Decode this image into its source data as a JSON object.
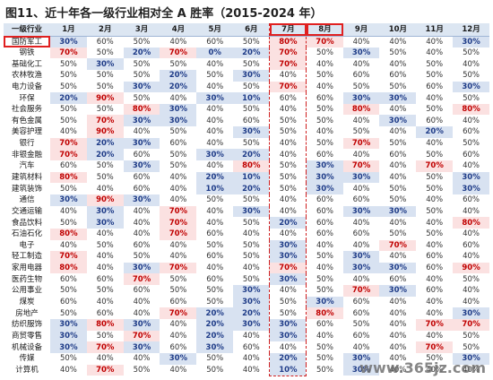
{
  "title": "图11、近十年各一级行业相对全 A 胜率（2015-2024 年）",
  "table": {
    "header": [
      "一级行业",
      "1月",
      "2月",
      "3月",
      "4月",
      "5月",
      "6月",
      "7月",
      "8月",
      "9月",
      "10月",
      "11月",
      "12月"
    ],
    "rows": [
      [
        "国防军工",
        "30%",
        "60%",
        "50%",
        "40%",
        "60%",
        "50%",
        "80%",
        "70%",
        "40%",
        "40%",
        "40%",
        "30%"
      ],
      [
        "钢铁",
        "70%",
        "50%",
        "20%",
        "70%",
        "0%",
        "20%",
        "70%",
        "50%",
        "30%",
        "50%",
        "40%",
        "50%"
      ],
      [
        "基础化工",
        "50%",
        "30%",
        "50%",
        "50%",
        "40%",
        "50%",
        "70%",
        "40%",
        "40%",
        "40%",
        "50%",
        "40%"
      ],
      [
        "农林牧渔",
        "50%",
        "50%",
        "50%",
        "20%",
        "50%",
        "30%",
        "40%",
        "50%",
        "60%",
        "60%",
        "50%",
        "50%"
      ],
      [
        "电力设备",
        "50%",
        "50%",
        "30%",
        "20%",
        "40%",
        "50%",
        "70%",
        "40%",
        "50%",
        "50%",
        "60%",
        "30%"
      ],
      [
        "环保",
        "20%",
        "90%",
        "50%",
        "40%",
        "30%",
        "10%",
        "60%",
        "60%",
        "30%",
        "30%",
        "40%",
        "50%"
      ],
      [
        "社会服务",
        "50%",
        "50%",
        "80%",
        "30%",
        "40%",
        "50%",
        "40%",
        "50%",
        "80%",
        "40%",
        "50%",
        "80%"
      ],
      [
        "有色金属",
        "50%",
        "70%",
        "30%",
        "30%",
        "40%",
        "60%",
        "50%",
        "50%",
        "40%",
        "30%",
        "60%",
        "40%"
      ],
      [
        "美容护理",
        "40%",
        "90%",
        "40%",
        "50%",
        "40%",
        "30%",
        "50%",
        "40%",
        "50%",
        "40%",
        "20%",
        "60%"
      ],
      [
        "银行",
        "70%",
        "20%",
        "30%",
        "60%",
        "40%",
        "50%",
        "40%",
        "50%",
        "70%",
        "50%",
        "40%",
        "50%"
      ],
      [
        "非银金融",
        "70%",
        "20%",
        "60%",
        "50%",
        "30%",
        "20%",
        "40%",
        "60%",
        "40%",
        "60%",
        "50%",
        "60%"
      ],
      [
        "汽车",
        "60%",
        "50%",
        "30%",
        "50%",
        "40%",
        "80%",
        "50%",
        "30%",
        "70%",
        "40%",
        "70%",
        "40%"
      ],
      [
        "建筑材料",
        "80%",
        "50%",
        "60%",
        "40%",
        "20%",
        "10%",
        "50%",
        "30%",
        "30%",
        "40%",
        "50%",
        "30%"
      ],
      [
        "建筑装饰",
        "50%",
        "40%",
        "60%",
        "40%",
        "10%",
        "20%",
        "50%",
        "30%",
        "40%",
        "50%",
        "50%",
        "30%"
      ],
      [
        "通信",
        "30%",
        "90%",
        "30%",
        "40%",
        "50%",
        "50%",
        "40%",
        "60%",
        "60%",
        "50%",
        "40%",
        "60%"
      ],
      [
        "交通运输",
        "40%",
        "30%",
        "40%",
        "70%",
        "40%",
        "30%",
        "40%",
        "60%",
        "30%",
        "30%",
        "50%",
        "40%"
      ],
      [
        "食品饮料",
        "50%",
        "30%",
        "40%",
        "70%",
        "40%",
        "50%",
        "20%",
        "60%",
        "40%",
        "40%",
        "40%",
        "80%"
      ],
      [
        "石油石化",
        "80%",
        "40%",
        "40%",
        "70%",
        "60%",
        "40%",
        "40%",
        "60%",
        "60%",
        "50%",
        "50%",
        "40%"
      ],
      [
        "电子",
        "40%",
        "50%",
        "60%",
        "40%",
        "50%",
        "50%",
        "30%",
        "40%",
        "40%",
        "70%",
        "40%",
        "60%"
      ],
      [
        "轻工制造",
        "70%",
        "40%",
        "50%",
        "40%",
        "60%",
        "50%",
        "30%",
        "50%",
        "30%",
        "40%",
        "60%",
        "40%"
      ],
      [
        "家用电器",
        "80%",
        "40%",
        "30%",
        "70%",
        "40%",
        "40%",
        "70%",
        "40%",
        "30%",
        "30%",
        "60%",
        "90%"
      ],
      [
        "医药生物",
        "60%",
        "60%",
        "70%",
        "50%",
        "60%",
        "50%",
        "30%",
        "50%",
        "40%",
        "60%",
        "40%",
        "50%"
      ],
      [
        "公用事业",
        "50%",
        "50%",
        "60%",
        "50%",
        "50%",
        "30%",
        "40%",
        "50%",
        "70%",
        "30%",
        "60%",
        "40%"
      ],
      [
        "煤炭",
        "60%",
        "40%",
        "40%",
        "60%",
        "50%",
        "30%",
        "50%",
        "30%",
        "60%",
        "40%",
        "40%",
        "40%"
      ],
      [
        "房地产",
        "50%",
        "60%",
        "40%",
        "70%",
        "20%",
        "20%",
        "50%",
        "80%",
        "60%",
        "40%",
        "40%",
        "30%"
      ],
      [
        "纺织服饰",
        "30%",
        "80%",
        "30%",
        "40%",
        "20%",
        "30%",
        "30%",
        "60%",
        "50%",
        "40%",
        "70%",
        "70%"
      ],
      [
        "商贸零售",
        "30%",
        "50%",
        "70%",
        "40%",
        "20%",
        "40%",
        "30%",
        "40%",
        "60%",
        "40%",
        "40%",
        "50%"
      ],
      [
        "机械设备",
        "30%",
        "70%",
        "30%",
        "60%",
        "30%",
        "60%",
        "40%",
        "50%",
        "40%",
        "40%",
        "70%",
        "50%"
      ],
      [
        "传媒",
        "50%",
        "40%",
        "40%",
        "30%",
        "50%",
        "40%",
        "20%",
        "50%",
        "30%",
        "40%",
        "50%",
        "30%"
      ],
      [
        "计算机",
        "40%",
        "70%",
        "50%",
        "40%",
        "50%",
        "40%",
        "10%",
        "50%",
        "30%",
        "40%",
        "40%",
        "40%"
      ]
    ]
  },
  "watermark": "www.365jz.com"
}
